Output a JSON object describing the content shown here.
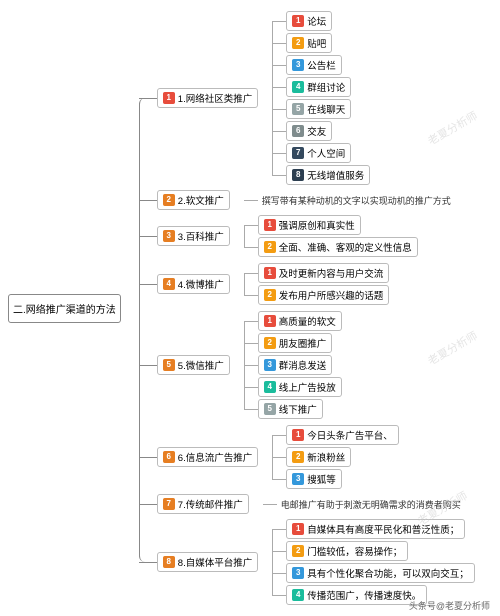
{
  "root": {
    "label": "二.网络推广渠道的方法"
  },
  "badge_colors": [
    "#e74c3c",
    "#f39c12",
    "#3498db",
    "#1abc9c",
    "#95a5a6",
    "#7f8c8d",
    "#34495e",
    "#2c3e50"
  ],
  "level1_badge_color": "#e67e22",
  "level1_first_badge_color": "#e74c3c",
  "branches": [
    {
      "num": "1",
      "label": "1.网络社区类推广",
      "leaves": [
        {
          "n": "1",
          "t": "论坛"
        },
        {
          "n": "2",
          "t": "贴吧"
        },
        {
          "n": "3",
          "t": "公告栏"
        },
        {
          "n": "4",
          "t": "群组讨论"
        },
        {
          "n": "5",
          "t": "在线聊天"
        },
        {
          "n": "6",
          "t": "交友"
        },
        {
          "n": "7",
          "t": "个人空间"
        },
        {
          "n": "8",
          "t": "无线增值服务"
        }
      ]
    },
    {
      "num": "2",
      "label": "2.软文推广",
      "note": "撰写带有某种动机的文字以实现动机的推广方式"
    },
    {
      "num": "3",
      "label": "3.百科推广",
      "leaves": [
        {
          "n": "1",
          "t": "强调原创和真实性"
        },
        {
          "n": "2",
          "t": "全面、准确、客观的定义性信息"
        }
      ]
    },
    {
      "num": "4",
      "label": "4.微博推广",
      "leaves": [
        {
          "n": "1",
          "t": "及时更新内容与用户交流"
        },
        {
          "n": "2",
          "t": "发布用户所感兴趣的话题"
        }
      ]
    },
    {
      "num": "5",
      "label": "5.微信推广",
      "leaves": [
        {
          "n": "1",
          "t": "高质量的软文"
        },
        {
          "n": "2",
          "t": "朋友圈推广"
        },
        {
          "n": "3",
          "t": "群消息发送"
        },
        {
          "n": "4",
          "t": "线上广告投放"
        },
        {
          "n": "5",
          "t": "线下推广"
        }
      ]
    },
    {
      "num": "6",
      "label": "6.信息流广告推广",
      "leaves": [
        {
          "n": "1",
          "t": "今日头条广告平台、"
        },
        {
          "n": "2",
          "t": "新浪粉丝"
        },
        {
          "n": "3",
          "t": "搜狐等"
        }
      ]
    },
    {
      "num": "7",
      "label": "7.传统邮件推广",
      "note": "电邮推广有助于刺激无明确需求的消费者购买"
    },
    {
      "num": "8",
      "label": "8.自媒体平台推广",
      "leaves": [
        {
          "n": "1",
          "t": "自媒体具有高度平民化和普泛性质；"
        },
        {
          "n": "2",
          "t": "门槛较低，容易操作；"
        },
        {
          "n": "3",
          "t": "具有个性化聚合功能，可以双向交互；"
        },
        {
          "n": "4",
          "t": "传播范围广，传播速度快。"
        }
      ]
    }
  ],
  "watermark": "老夏分析师",
  "footer": "头条号@老夏分析师"
}
